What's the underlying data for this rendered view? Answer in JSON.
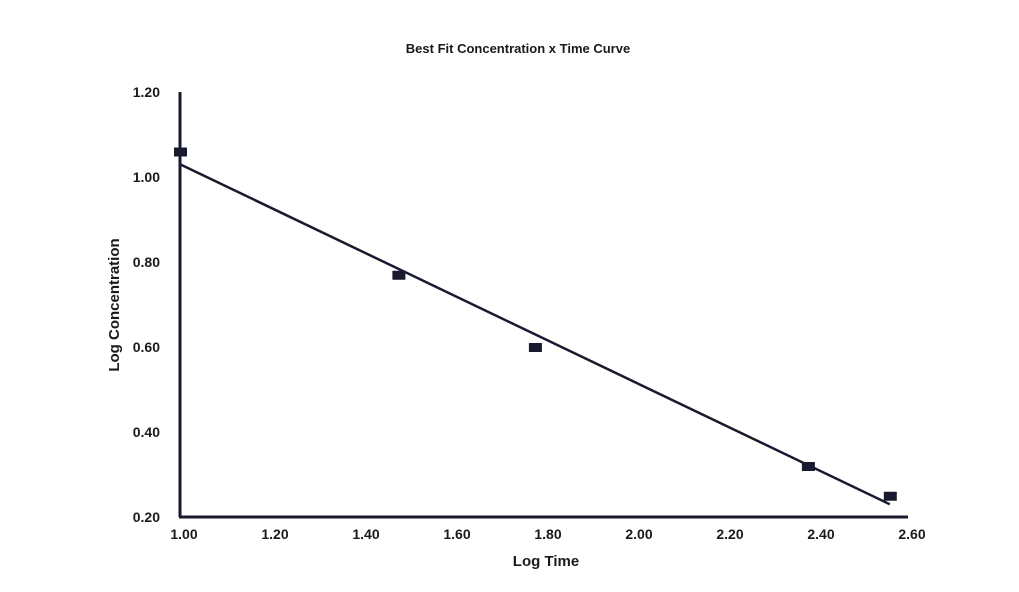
{
  "chart_data": {
    "type": "scatter",
    "title": "Best Fit Concentration x Time Curve",
    "xlabel": "Log Time",
    "ylabel": "Log Concentration",
    "xlim": [
      1.0,
      2.6
    ],
    "ylim": [
      0.2,
      1.2
    ],
    "x_ticks": [
      "1.00",
      "1.20",
      "1.40",
      "1.60",
      "1.80",
      "2.00",
      "2.20",
      "2.40",
      "2.60"
    ],
    "y_ticks": [
      "0.20",
      "0.40",
      "0.60",
      "0.80",
      "1.00",
      "1.20"
    ],
    "grid": false,
    "legend": "none",
    "series": [
      {
        "kind": "points",
        "marker": "square",
        "x": [
          1.0,
          1.48,
          1.78,
          2.38,
          2.56
        ],
        "y": [
          1.06,
          0.77,
          0.6,
          0.32,
          0.25
        ]
      },
      {
        "kind": "fit-line",
        "x": [
          1.0,
          2.56
        ],
        "y": [
          1.03,
          0.23
        ]
      }
    ],
    "colors": {
      "ink": "#1a1a2e",
      "text": "#1a1a1a"
    }
  }
}
